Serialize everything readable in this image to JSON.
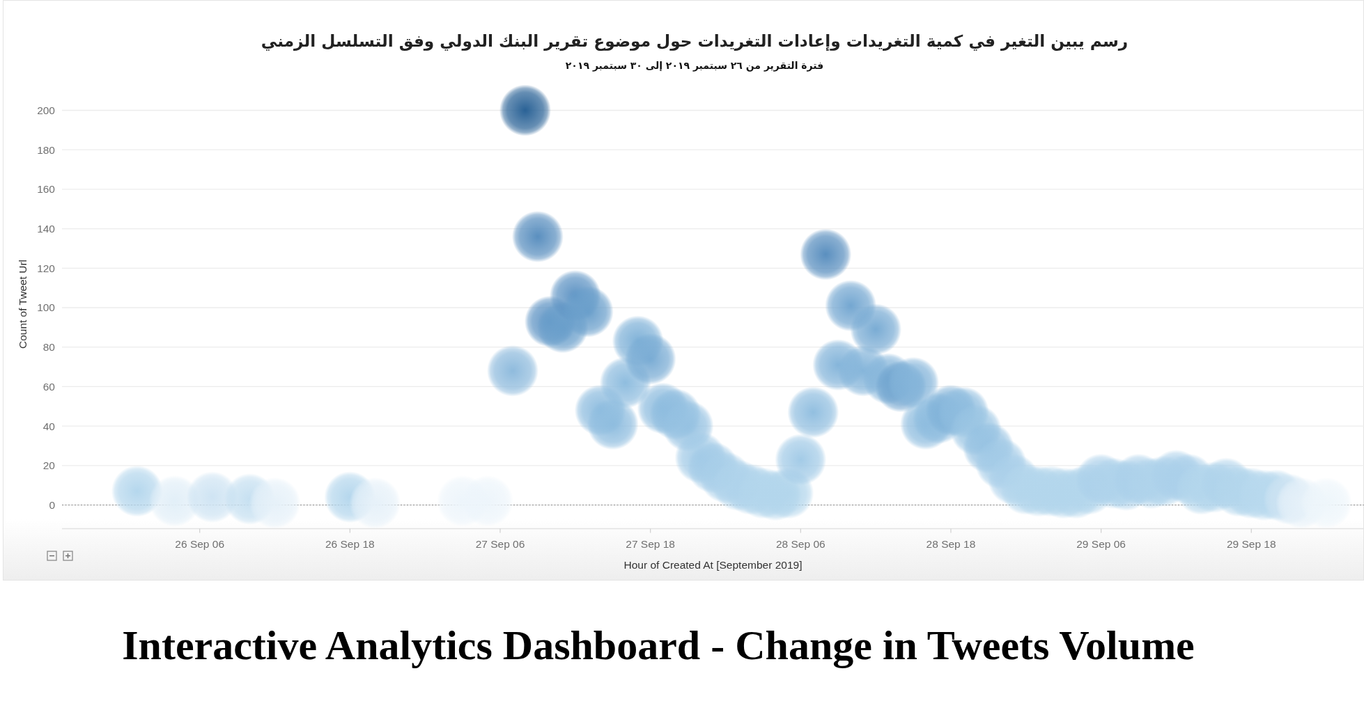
{
  "chart_data": {
    "type": "scatter",
    "title": "رسم يبين التغير في كمية التغريدات وإعادات التغريدات حول موضوع تقرير البنك الدولي وفق التسلسل الزمني",
    "subtitle": "فترة التقرير من ٢٦ سبتمبر ٢٠١٩ إلى ٣٠ سبتمبر ٢٠١٩",
    "xlabel": "Hour of Created At [September 2019]",
    "ylabel": "Count of Tweet Url",
    "annotations": [
      "Interactive Analytics Dashboard - Change in Tweets Volume"
    ],
    "x": [
      "2019-09-26T01:00",
      "2019-09-26T04:00",
      "2019-09-26T07:00",
      "2019-09-26T10:00",
      "2019-09-26T12:00",
      "2019-09-26T18:00",
      "2019-09-26T20:00",
      "2019-09-27T03:00",
      "2019-09-27T05:00",
      "2019-09-27T07:00",
      "2019-09-27T08:00",
      "2019-09-27T09:00",
      "2019-09-27T10:00",
      "2019-09-27T11:00",
      "2019-09-27T12:00",
      "2019-09-27T13:00",
      "2019-09-27T14:00",
      "2019-09-27T15:00",
      "2019-09-27T16:00",
      "2019-09-27T17:00",
      "2019-09-27T18:00",
      "2019-09-27T19:00",
      "2019-09-27T20:00",
      "2019-09-27T21:00",
      "2019-09-27T22:00",
      "2019-09-27T23:00",
      "2019-09-28T00:00",
      "2019-09-28T01:00",
      "2019-09-28T02:00",
      "2019-09-28T03:00",
      "2019-09-28T04:00",
      "2019-09-28T05:00",
      "2019-09-28T06:00",
      "2019-09-28T07:00",
      "2019-09-28T08:00",
      "2019-09-28T09:00",
      "2019-09-28T10:00",
      "2019-09-28T11:00",
      "2019-09-28T12:00",
      "2019-09-28T13:00",
      "2019-09-28T14:00",
      "2019-09-28T15:00",
      "2019-09-28T16:00",
      "2019-09-28T17:00",
      "2019-09-28T18:00",
      "2019-09-28T19:00",
      "2019-09-28T20:00",
      "2019-09-28T21:00",
      "2019-09-28T22:00",
      "2019-09-28T23:00",
      "2019-09-29T00:00",
      "2019-09-29T01:00",
      "2019-09-29T02:00",
      "2019-09-29T03:00",
      "2019-09-29T04:00",
      "2019-09-29T05:00",
      "2019-09-29T06:00",
      "2019-09-29T07:00",
      "2019-09-29T08:00",
      "2019-09-29T09:00",
      "2019-09-29T10:00",
      "2019-09-29T11:00",
      "2019-09-29T12:00",
      "2019-09-29T13:00",
      "2019-09-29T14:00",
      "2019-09-29T15:00",
      "2019-09-29T16:00",
      "2019-09-29T17:00",
      "2019-09-29T18:00",
      "2019-09-29T19:00",
      "2019-09-29T20:00",
      "2019-09-29T21:00",
      "2019-09-29T22:00",
      "2019-09-30T00:00"
    ],
    "values": [
      7,
      2,
      4,
      3,
      1,
      4,
      1,
      2,
      2,
      68,
      200,
      136,
      93,
      90,
      106,
      98,
      48,
      41,
      62,
      83,
      74,
      49,
      46,
      40,
      24,
      19,
      14,
      10,
      8,
      6,
      5,
      6,
      23,
      47,
      127,
      71,
      101,
      68,
      89,
      64,
      60,
      62,
      41,
      44,
      48,
      47,
      38,
      29,
      21,
      13,
      8,
      7,
      7,
      6,
      6,
      8,
      13,
      11,
      10,
      13,
      11,
      12,
      15,
      13,
      8,
      9,
      11,
      7,
      6,
      5,
      5,
      3,
      1,
      1
    ],
    "colors": [
      "#b5d7ed",
      "#e2eff8",
      "#cfe4f3",
      "#c6e0f1",
      "#e6f1f9",
      "#b5d7ed",
      "#e6f1f9",
      "#edf5fb",
      "#edf5fb",
      "#8fbbdd",
      "#2a6296",
      "#5a8fbf",
      "#5f94c4",
      "#6a9fcb",
      "#5f94c4",
      "#6a9fcb",
      "#8fbddf",
      "#8fbddf",
      "#8fbddf",
      "#80b2d8",
      "#7aacd4",
      "#8fbddf",
      "#8fbddf",
      "#96c2e2",
      "#a3cbe7",
      "#a3cbe7",
      "#a9cfe9",
      "#afd3eb",
      "#afd3eb",
      "#b3d6ec",
      "#b3d6ec",
      "#b3d6ec",
      "#a3cbe7",
      "#92bfe0",
      "#5a8fbf",
      "#85b5da",
      "#74a7d1",
      "#85b5da",
      "#7aacd4",
      "#85b5da",
      "#6fa3ce",
      "#85b5da",
      "#8fbddf",
      "#8fbddf",
      "#80b2d8",
      "#8fbddf",
      "#9ac5e3",
      "#96c2e2",
      "#a3cbe7",
      "#abd0ea",
      "#b3d6ec",
      "#b3d6ec",
      "#b3d6ec",
      "#b3d6ec",
      "#b3d6ec",
      "#b3d6ec",
      "#abd0ea",
      "#afd3eb",
      "#afd3eb",
      "#abd0ea",
      "#afd3eb",
      "#afd3eb",
      "#abd0ea",
      "#abd0ea",
      "#b3d6ec",
      "#b3d6ec",
      "#afd3eb",
      "#b3d6ec",
      "#b3d6ec",
      "#b8d9ee",
      "#b8d9ee",
      "#cfe4f3",
      "#e6f1f9",
      "#eef6fb"
    ],
    "marker": "circle",
    "xlim": [
      "2019-09-25T19:00",
      "2019-09-30T03:00"
    ],
    "xticks": [
      {
        "value": "2019-09-26T06:00",
        "label": "26 Sep 06"
      },
      {
        "value": "2019-09-26T18:00",
        "label": "26 Sep 18"
      },
      {
        "value": "2019-09-27T06:00",
        "label": "27 Sep 06"
      },
      {
        "value": "2019-09-27T18:00",
        "label": "27 Sep 18"
      },
      {
        "value": "2019-09-28T06:00",
        "label": "28 Sep 06"
      },
      {
        "value": "2019-09-28T18:00",
        "label": "28 Sep 18"
      },
      {
        "value": "2019-09-29T06:00",
        "label": "29 Sep 06"
      },
      {
        "value": "2019-09-29T18:00",
        "label": "29 Sep 18"
      }
    ],
    "ylim": [
      -12,
      200
    ],
    "yticks": [
      0,
      20,
      40,
      60,
      80,
      100,
      120,
      140,
      160,
      180,
      200
    ],
    "grid": "y",
    "ref_lines": [
      {
        "axis": "y",
        "value": 0,
        "line_style": "dotted",
        "color": "#8c8c8c"
      }
    ]
  }
}
